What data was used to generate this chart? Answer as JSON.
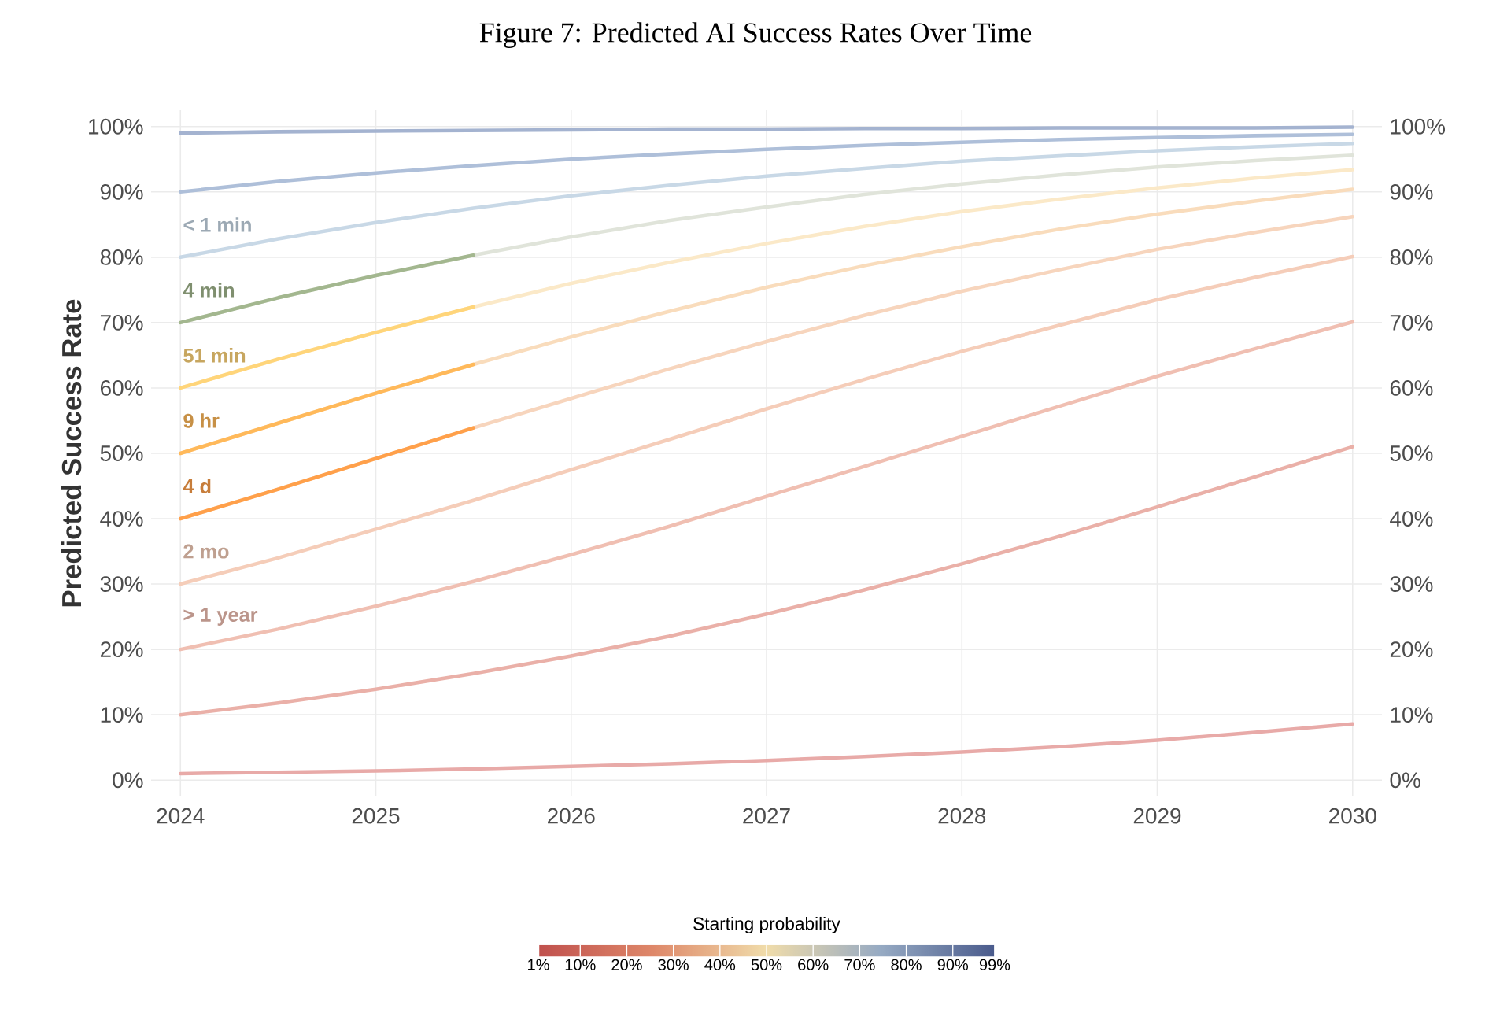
{
  "chart_data": {
    "type": "line",
    "title": "Figure 7: Predicted AI Success Rates Over Time",
    "ylabel": "Predicted Success Rate",
    "clabel": "Starting probability",
    "x": [
      2024,
      2024.5,
      2025,
      2025.5,
      2026,
      2026.5,
      2027,
      2027.5,
      2028,
      2028.5,
      2029,
      2029.5,
      2030
    ],
    "series": [
      {
        "color": "#e8aaa8",
        "values": [
          1.0,
          1.2,
          1.4,
          1.7,
          2.1,
          2.5,
          3.0,
          3.6,
          4.3,
          5.1,
          6.1,
          7.3,
          8.6
        ]
      },
      {
        "color": "#eab0a8",
        "values": [
          10.0,
          11.8,
          13.9,
          16.3,
          19.0,
          22.0,
          25.4,
          29.1,
          33.1,
          37.3,
          41.8,
          46.4,
          51.0
        ]
      },
      {
        "color": "#f0bfb2",
        "values": [
          20.0,
          23.1,
          26.6,
          30.4,
          34.5,
          38.8,
          43.4,
          48.0,
          52.6,
          57.2,
          61.8,
          66.0,
          70.1
        ]
      },
      {
        "color": "#f5cdb9",
        "values": [
          30.0,
          34.0,
          38.4,
          42.8,
          47.5,
          52.1,
          56.8,
          61.3,
          65.6,
          69.6,
          73.5,
          76.9,
          80.1
        ]
      },
      {
        "color": "#f7d5bd",
        "values": [
          40.0,
          44.5,
          49.2,
          53.9,
          58.4,
          62.9,
          67.1,
          71.1,
          74.8,
          78.1,
          81.2,
          83.8,
          86.2
        ]
      },
      {
        "color": "#f9dcbc",
        "values": [
          50.0,
          54.6,
          59.2,
          63.6,
          67.8,
          71.7,
          75.4,
          78.7,
          81.6,
          84.3,
          86.6,
          88.6,
          90.4
        ]
      },
      {
        "color": "#fbe9c8",
        "values": [
          60.0,
          64.4,
          68.5,
          72.4,
          76.0,
          79.2,
          82.1,
          84.7,
          87.0,
          88.9,
          90.6,
          92.1,
          93.4
        ]
      },
      {
        "color": "#e0e4da",
        "values": [
          70.0,
          73.8,
          77.2,
          80.3,
          83.1,
          85.6,
          87.7,
          89.6,
          91.2,
          92.6,
          93.8,
          94.8,
          95.6
        ]
      },
      {
        "color": "#c8d8e6",
        "values": [
          80.0,
          82.8,
          85.3,
          87.5,
          89.4,
          91.0,
          92.4,
          93.6,
          94.7,
          95.5,
          96.3,
          96.9,
          97.4
        ]
      },
      {
        "color": "#aebfd9",
        "values": [
          90.0,
          91.6,
          92.9,
          94.0,
          95.0,
          95.8,
          96.5,
          97.1,
          97.6,
          98.0,
          98.3,
          98.6,
          98.8
        ]
      },
      {
        "color": "#a4b3d0",
        "values": [
          99.0,
          99.2,
          99.3,
          99.4,
          99.5,
          99.6,
          99.6,
          99.7,
          99.7,
          99.8,
          99.8,
          99.8,
          99.9
        ]
      },
      {
        "color": "#a3b78f",
        "x": [
          2024,
          2024.5,
          2025,
          2025.5
        ],
        "values": [
          70.0,
          73.8,
          77.2,
          80.3
        ]
      },
      {
        "color": "#ffd57a",
        "x": [
          2024,
          2024.5,
          2025,
          2025.5
        ],
        "values": [
          60.0,
          64.4,
          68.5,
          72.4
        ]
      },
      {
        "color": "#ffb95a",
        "x": [
          2024,
          2024.5,
          2025,
          2025.5
        ],
        "values": [
          50.0,
          54.6,
          59.2,
          63.6
        ]
      },
      {
        "color": "#ffa04a",
        "x": [
          2024,
          2024.5,
          2025,
          2025.5
        ],
        "values": [
          40.0,
          44.5,
          49.2,
          53.9
        ]
      }
    ],
    "annotations": [
      "< 1 min",
      "4 min",
      "51 min",
      "9 hr",
      "4 d",
      "2 mo",
      "> 1 year"
    ],
    "xlim": [
      2023.85,
      2030.15
    ],
    "ylim": [
      -2.5,
      102.5
    ],
    "xticks": [
      2024,
      2025,
      2026,
      2027,
      2028,
      2029,
      2030
    ],
    "yticks": [
      {
        "value": 0,
        "label": "0%"
      },
      {
        "value": 10,
        "label": "10%"
      },
      {
        "value": 20,
        "label": "20%"
      },
      {
        "value": 30,
        "label": "30%"
      },
      {
        "value": 40,
        "label": "40%"
      },
      {
        "value": 50,
        "label": "50%"
      },
      {
        "value": 60,
        "label": "60%"
      },
      {
        "value": 70,
        "label": "70%"
      },
      {
        "value": 80,
        "label": "80%"
      },
      {
        "value": 90,
        "label": "90%"
      },
      {
        "value": 100,
        "label": "100%"
      }
    ],
    "y2lim": [
      -2.5,
      102.5
    ],
    "y2ticks": [
      {
        "value": 0,
        "label": "0%"
      },
      {
        "value": 10,
        "label": "10%"
      },
      {
        "value": 20,
        "label": "20%"
      },
      {
        "value": 30,
        "label": "30%"
      },
      {
        "value": 40,
        "label": "40%"
      },
      {
        "value": 50,
        "label": "50%"
      },
      {
        "value": 60,
        "label": "60%"
      },
      {
        "value": 70,
        "label": "70%"
      },
      {
        "value": 80,
        "label": "80%"
      },
      {
        "value": 90,
        "label": "90%"
      },
      {
        "value": 100,
        "label": "100%"
      }
    ],
    "clim": [
      1,
      99
    ],
    "cticks": [
      {
        "value": 1,
        "label": "1%"
      },
      {
        "value": 10,
        "label": "10%"
      },
      {
        "value": 20,
        "label": "20%"
      },
      {
        "value": 30,
        "label": "30%"
      },
      {
        "value": 40,
        "label": "40%"
      },
      {
        "value": 50,
        "label": "50%"
      },
      {
        "value": 60,
        "label": "60%"
      },
      {
        "value": 70,
        "label": "70%"
      },
      {
        "value": 80,
        "label": "80%"
      },
      {
        "value": 90,
        "label": "90%"
      },
      {
        "value": 99,
        "label": "99%"
      }
    ],
    "grid": true,
    "marker": "none",
    "line_style": "solid"
  }
}
